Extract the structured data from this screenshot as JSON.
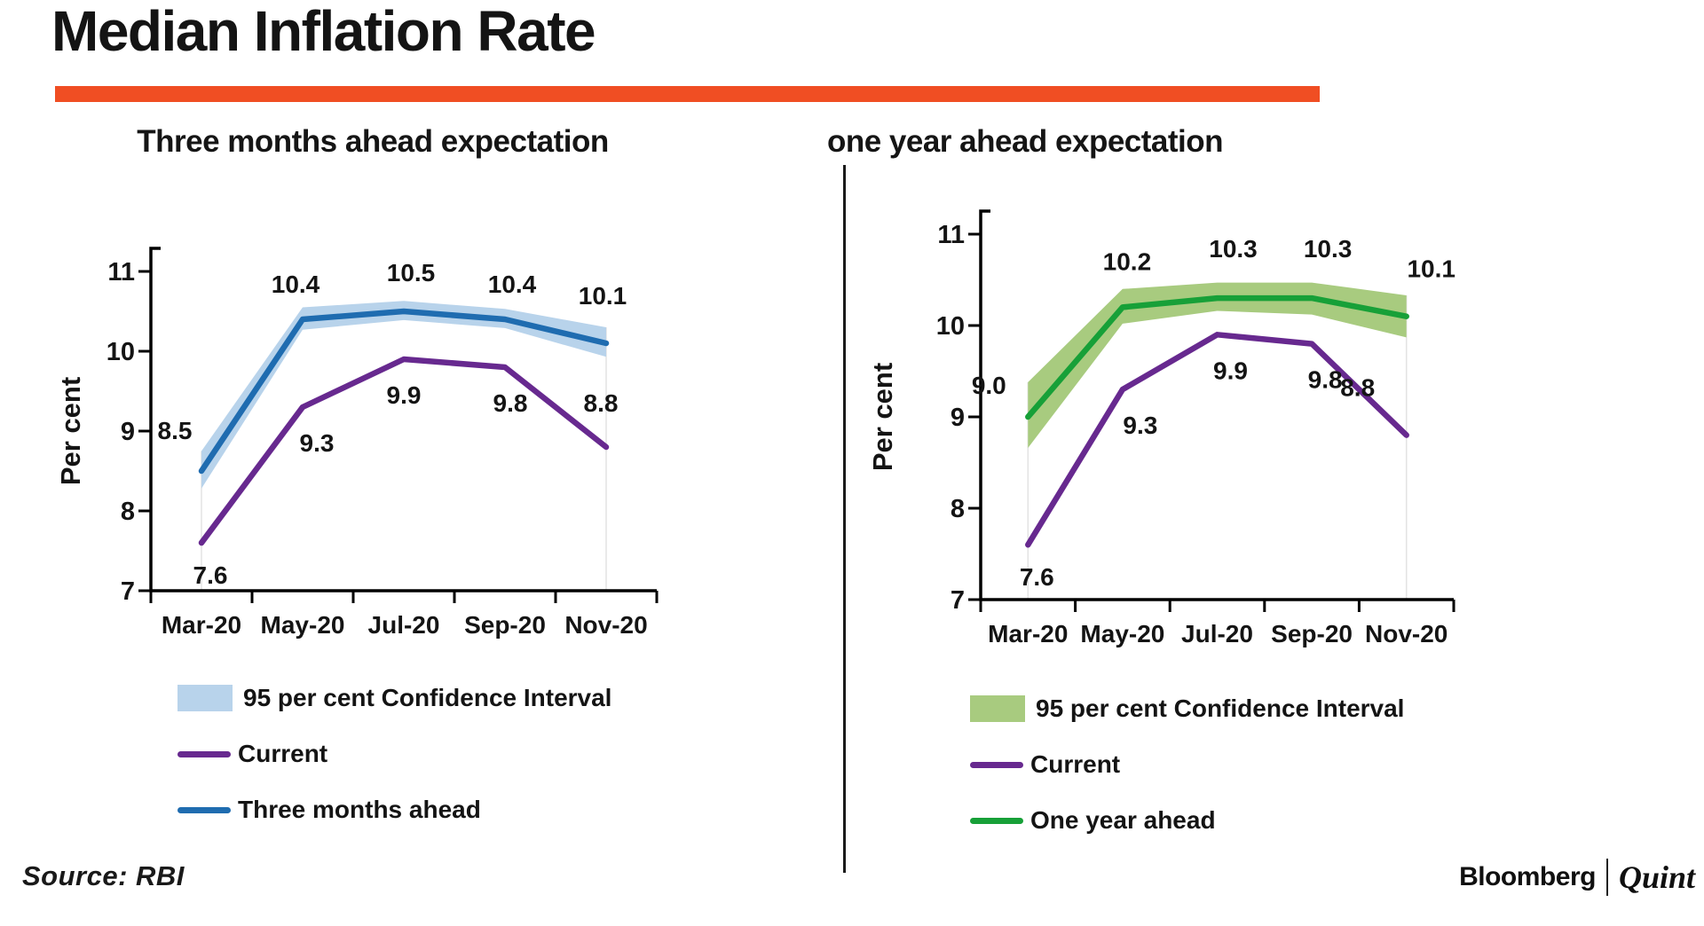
{
  "page": {
    "title": "Median Inflation Rate",
    "source": "Source: RBI",
    "brand": {
      "name1": "Bloomberg",
      "name2": "Quint"
    },
    "accent_color": "#F04E23"
  },
  "chart_data": [
    {
      "type": "line",
      "title": "Three months ahead expectation",
      "ylabel": "Per cent",
      "ylim": [
        7,
        11
      ],
      "yticks": [
        7,
        8,
        9,
        10,
        11
      ],
      "grid": false,
      "legend_position": "bottom",
      "categories": [
        "Mar-20",
        "May-20",
        "Jul-20",
        "Sep-20",
        "Nov-20"
      ],
      "series": [
        {
          "name": "Current",
          "color": "#67298F",
          "values": [
            7.6,
            9.3,
            9.9,
            9.8,
            8.8
          ],
          "label_offsets": [
            [
              10,
              46
            ],
            [
              16,
              50
            ],
            [
              0,
              50
            ],
            [
              6,
              50
            ],
            [
              -6,
              -40
            ]
          ]
        },
        {
          "name": "Three months ahead",
          "color": "#1F6CB0",
          "values": [
            8.5,
            10.4,
            10.5,
            10.4,
            10.1
          ],
          "label_offsets": [
            [
              -30,
              -36
            ],
            [
              -8,
              -30
            ],
            [
              8,
              -34
            ],
            [
              8,
              -30
            ],
            [
              -4,
              -44
            ]
          ],
          "band": {
            "name": "95 per cent Confidence Interval",
            "color": "#B8D3EB",
            "upper": [
              8.75,
              10.55,
              10.63,
              10.53,
              10.3
            ],
            "lower": [
              8.28,
              10.27,
              10.39,
              10.29,
              9.93
            ]
          }
        }
      ]
    },
    {
      "type": "line",
      "title": "one year ahead expectation",
      "ylabel": "Per cent",
      "ylim": [
        7,
        11
      ],
      "yticks": [
        7,
        8,
        9,
        10,
        11
      ],
      "grid": false,
      "legend_position": "bottom",
      "categories": [
        "Mar-20",
        "May-20",
        "Jul-20",
        "Sep-20",
        "Nov-20"
      ],
      "series": [
        {
          "name": "Current",
          "color": "#67298F",
          "values": [
            7.6,
            9.3,
            9.9,
            9.8,
            8.8
          ],
          "label_offsets": [
            [
              10,
              46
            ],
            [
              20,
              50
            ],
            [
              15,
              50
            ],
            [
              15,
              50
            ],
            [
              -55,
              -44
            ]
          ]
        },
        {
          "name": "One year ahead",
          "color": "#17A038",
          "values": [
            9.0,
            10.2,
            10.3,
            10.3,
            10.1
          ],
          "label_offsets": [
            [
              -44,
              -26
            ],
            [
              5,
              -42
            ],
            [
              18,
              -46
            ],
            [
              18,
              -46
            ],
            [
              28,
              -44
            ]
          ],
          "band": {
            "name": "95 per cent Confidence Interval",
            "color": "#A8CB7F",
            "upper": [
              9.38,
              10.4,
              10.47,
              10.47,
              10.33
            ],
            "lower": [
              8.66,
              10.02,
              10.16,
              10.12,
              9.87
            ]
          }
        }
      ]
    }
  ]
}
